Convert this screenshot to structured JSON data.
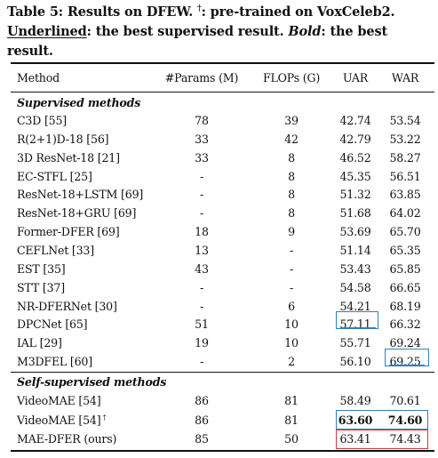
{
  "caption": {
    "line1": "Table 5: Results on DFEW. ",
    "dagger": "†",
    "line1b": ": pre-trained on VoxCeleb2.",
    "underlined": "Underlined",
    "line2a": ": the best supervised result. ",
    "bold_word": "Bold",
    "line2b": ": the best result."
  },
  "headers": [
    "Method",
    "#Params (M)",
    "FLOPs (G)",
    "UAR",
    "WAR"
  ],
  "sections": {
    "supervised": "Supervised methods",
    "self_supervised": "Self-supervised methods"
  },
  "supervised_rows": [
    {
      "method": "C3D [55]",
      "params": "78",
      "flops": "39",
      "uar": "42.74",
      "war": "53.54"
    },
    {
      "method": "R(2+1)D-18 [56]",
      "params": "33",
      "flops": "42",
      "uar": "42.79",
      "war": "53.22"
    },
    {
      "method": "3D ResNet-18 [21]",
      "params": "33",
      "flops": "8",
      "uar": "46.52",
      "war": "58.27"
    },
    {
      "method": "EC-STFL [25]",
      "params": "-",
      "flops": "8",
      "uar": "45.35",
      "war": "56.51"
    },
    {
      "method": "ResNet-18+LSTM [69]",
      "params": "-",
      "flops": "8",
      "uar": "51.32",
      "war": "63.85"
    },
    {
      "method": "ResNet-18+GRU [69]",
      "params": "-",
      "flops": "8",
      "uar": "51.68",
      "war": "64.02"
    },
    {
      "method": "Former-DFER [69]",
      "params": "18",
      "flops": "9",
      "uar": "53.69",
      "war": "65.70"
    },
    {
      "method": "CEFLNet [33]",
      "params": "13",
      "flops": "-",
      "uar": "51.14",
      "war": "65.35"
    },
    {
      "method": "EST [35]",
      "params": "43",
      "flops": "-",
      "uar": "53.43",
      "war": "65.85"
    },
    {
      "method": "STT [37]",
      "params": "-",
      "flops": "-",
      "uar": "54.58",
      "war": "66.65"
    },
    {
      "method": "NR-DFERNet [30]",
      "params": "-",
      "flops": "6",
      "uar": "54.21",
      "war": "68.19"
    },
    {
      "method": "DPCNet [65]",
      "params": "51",
      "flops": "10",
      "uar": "57.11",
      "war": "66.32"
    },
    {
      "method": "IAL [29]",
      "params": "19",
      "flops": "10",
      "uar": "55.71",
      "war": "69.24"
    },
    {
      "method": "M3DFEL [60]",
      "params": "-",
      "flops": "2",
      "uar": "56.10",
      "war": "69.25"
    }
  ],
  "self_supervised_rows": [
    {
      "method": "VideoMAE [54]",
      "dagger": "",
      "params": "86",
      "flops": "81",
      "uar": "58.49",
      "war": "70.61"
    },
    {
      "method": "VideoMAE [54]",
      "dagger": "†",
      "params": "86",
      "flops": "81",
      "uar": "63.60",
      "war": "74.60"
    },
    {
      "method": "MAE-DFER (ours)",
      "dagger": "",
      "params": "85",
      "flops": "50",
      "uar": "63.41",
      "war": "74.43"
    }
  ],
  "colors": {
    "blue_box": "#2f7fc1",
    "red_box": "#d23a3a"
  }
}
